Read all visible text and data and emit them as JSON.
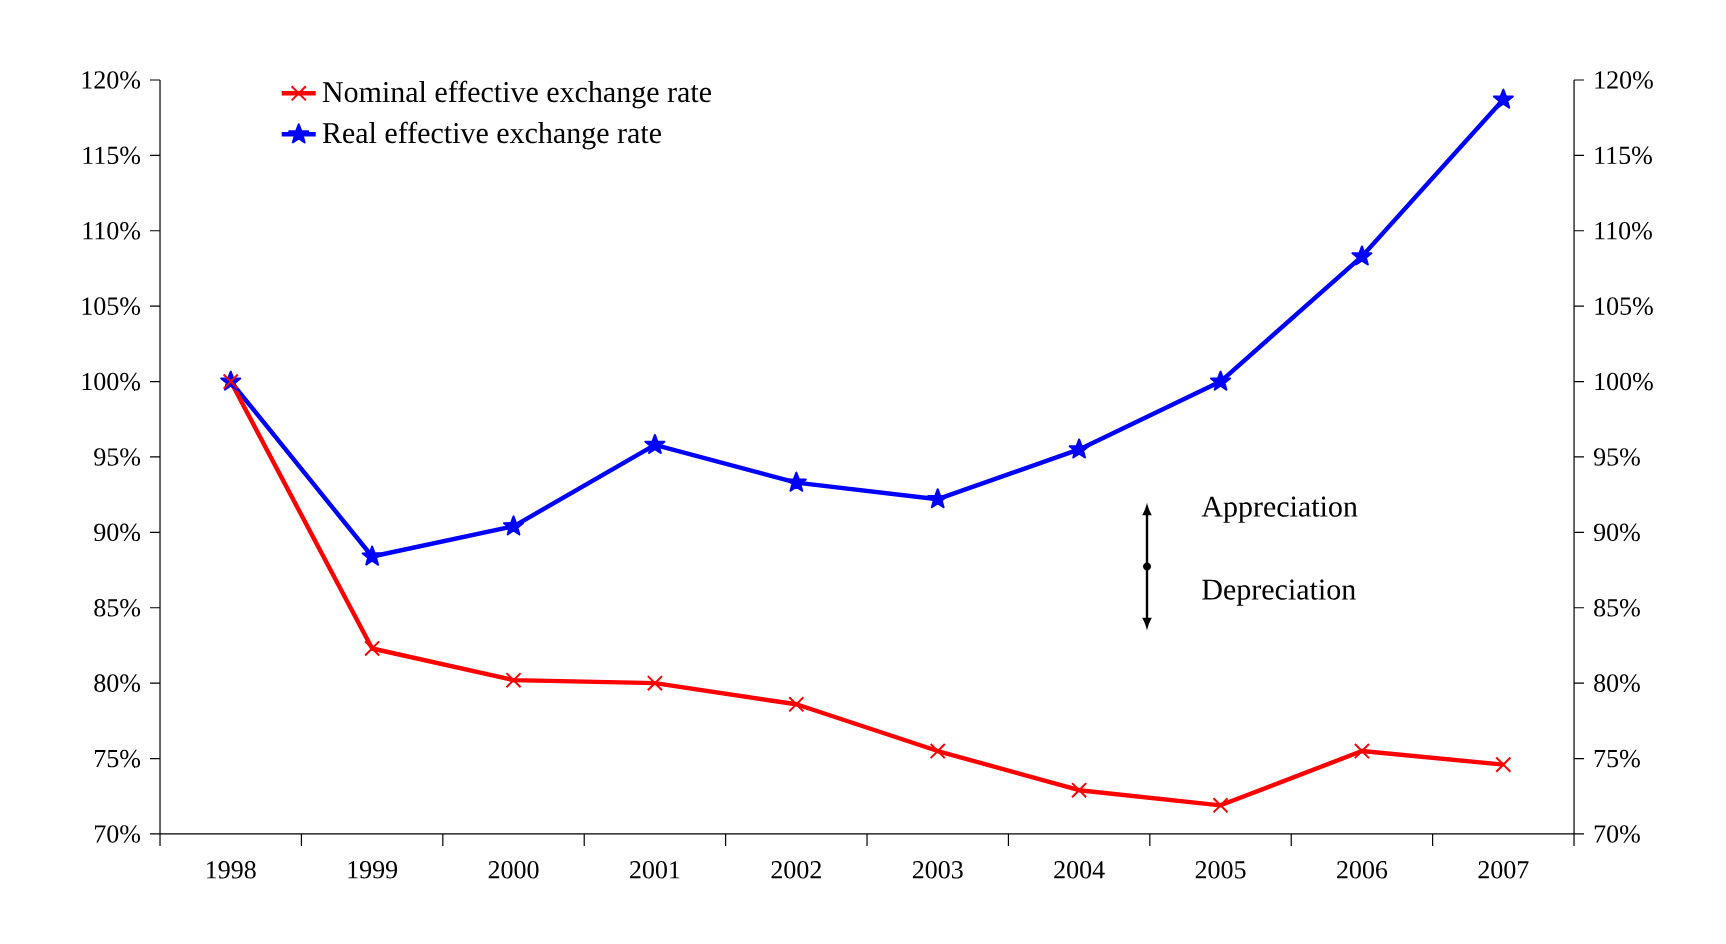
{
  "chart_data": {
    "type": "line",
    "categories": [
      "1998",
      "1999",
      "2000",
      "2001",
      "2002",
      "2003",
      "2004",
      "2005",
      "2006",
      "2007"
    ],
    "series": [
      {
        "name": "Nominal effective exchange rate",
        "color": "#ff0000",
        "marker": "cross",
        "values": [
          100,
          82.3,
          80.2,
          80.0,
          78.6,
          75.5,
          72.9,
          71.9,
          75.5,
          74.6
        ]
      },
      {
        "name": "Real effective exchange rate",
        "color": "#0000ff",
        "marker": "star",
        "values": [
          100,
          88.4,
          90.4,
          95.8,
          93.3,
          92.2,
          95.5,
          100,
          108.3,
          118.7
        ]
      }
    ],
    "ylim": [
      70,
      120
    ],
    "yticks": [
      {
        "value": 70,
        "label": "70%"
      },
      {
        "value": 75,
        "label": "75%"
      },
      {
        "value": 80,
        "label": "80%"
      },
      {
        "value": 85,
        "label": "85%"
      },
      {
        "value": 90,
        "label": "90%"
      },
      {
        "value": 95,
        "label": "95%"
      },
      {
        "value": 100,
        "label": "100%"
      },
      {
        "value": 105,
        "label": "105%"
      },
      {
        "value": 110,
        "label": "110%"
      },
      {
        "value": 115,
        "label": "115%"
      },
      {
        "value": 120,
        "label": "120%"
      }
    ],
    "y2lim": [
      70,
      120
    ],
    "y2ticks": [
      {
        "value": 70,
        "label": "70%"
      },
      {
        "value": 75,
        "label": "75%"
      },
      {
        "value": 80,
        "label": "80%"
      },
      {
        "value": 85,
        "label": "85%"
      },
      {
        "value": 90,
        "label": "90%"
      },
      {
        "value": 95,
        "label": "95%"
      },
      {
        "value": 100,
        "label": "100%"
      },
      {
        "value": 105,
        "label": "105%"
      },
      {
        "value": 110,
        "label": "110%"
      },
      {
        "value": 115,
        "label": "115%"
      },
      {
        "value": 120,
        "label": "120%"
      }
    ],
    "legend": "top left",
    "annotations": [
      "Appreciation",
      "Depreciation"
    ]
  }
}
